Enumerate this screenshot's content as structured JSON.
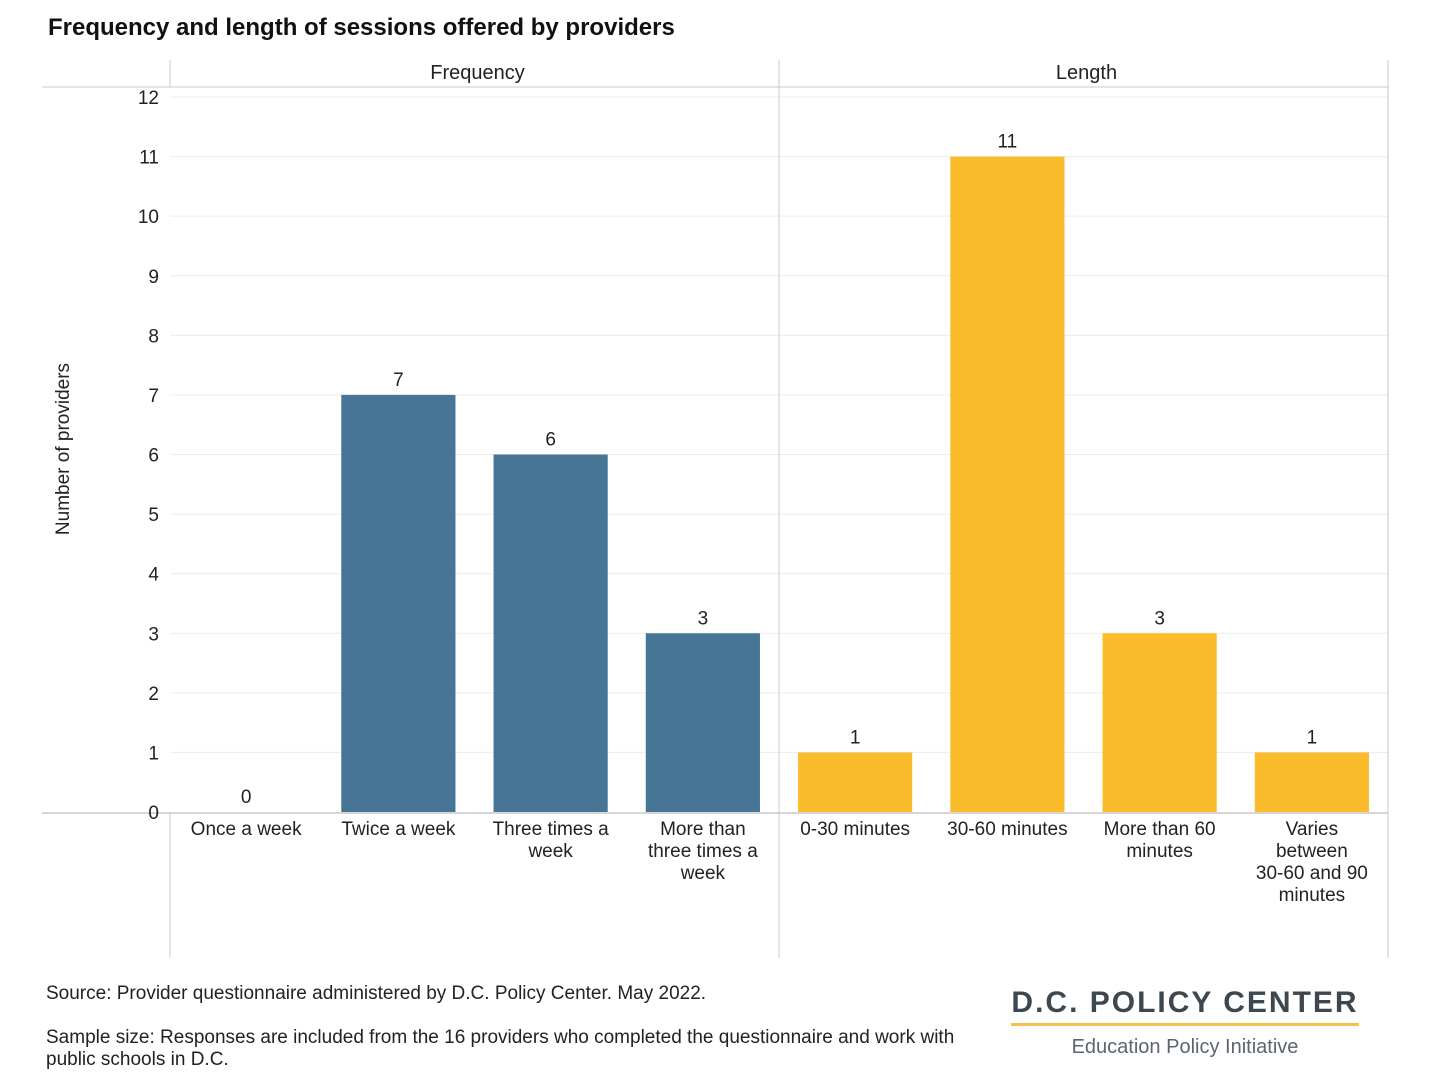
{
  "title": "Frequency and length of sessions offered by providers",
  "colors": {
    "frequency": "#477596",
    "length": "#fbbc2c",
    "grid": "#ececec",
    "divider": "#c8c8c8"
  },
  "chart_data": {
    "type": "bar",
    "title": "Frequency and length of sessions offered by providers",
    "ylabel": "Number of providers",
    "xlabel": "",
    "ylim": [
      0,
      12
    ],
    "yticks": [
      0,
      1,
      2,
      3,
      4,
      5,
      6,
      7,
      8,
      9,
      10,
      11,
      12
    ],
    "grid": true,
    "panels": [
      {
        "name": "Frequency",
        "color": "#477596",
        "categories": [
          "Once a week",
          "Twice a week",
          "Three times a week",
          "More than three times a week"
        ],
        "category_lines": [
          [
            "Once a week"
          ],
          [
            "Twice a week"
          ],
          [
            "Three times a",
            "week"
          ],
          [
            "More than",
            "three times a",
            "week"
          ]
        ],
        "values": [
          0,
          7,
          6,
          3
        ]
      },
      {
        "name": "Length",
        "color": "#fbbc2c",
        "categories": [
          "0-30 minutes",
          "30-60 minutes",
          "More than 60 minutes",
          "Varies between 30-60 and 90 minutes"
        ],
        "category_lines": [
          [
            "0-30 minutes"
          ],
          [
            "30-60 minutes"
          ],
          [
            "More than 60",
            "minutes"
          ],
          [
            "Varies",
            "between",
            "30-60 and 90",
            "minutes"
          ]
        ],
        "values": [
          1,
          11,
          3,
          1
        ]
      }
    ]
  },
  "footer": {
    "source": "Source: Provider questionnaire administered by D.C. Policy Center. May 2022.",
    "sample": "Sample size: Responses are included from the 16 providers who completed the questionnaire and work with public schools in D.C."
  },
  "logo": {
    "name": "D.C. POLICY CENTER",
    "subtitle": "Education Policy Initiative"
  }
}
